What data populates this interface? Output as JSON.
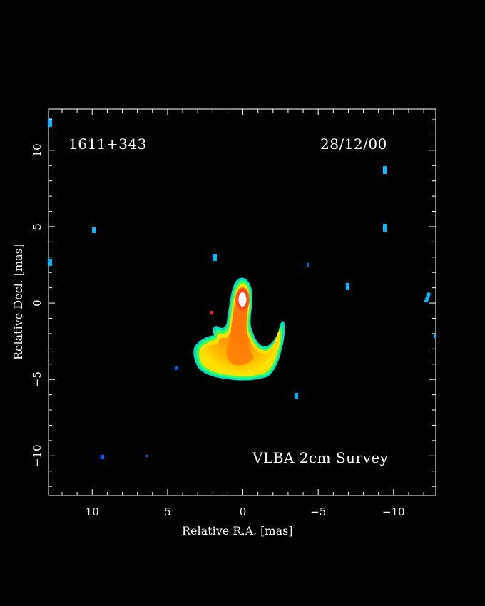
{
  "image": {
    "source_name": "1611+343",
    "observation_date": "28/12/00",
    "survey_name": "VLBA 2cm Survey"
  },
  "axes": {
    "xlabel": "Relative R.A. [mas]",
    "ylabel": "Relative Decl. [mas]",
    "x_range": [
      12.9,
      -12.8
    ],
    "y_range": [
      -12.6,
      12.7
    ],
    "x_ticks": [
      {
        "value": 10,
        "label": "10"
      },
      {
        "value": 5,
        "label": "5"
      },
      {
        "value": 0,
        "label": "0"
      },
      {
        "value": -5,
        "label": "−5"
      },
      {
        "value": -10,
        "label": "−10"
      }
    ],
    "y_ticks": [
      {
        "value": 10,
        "label": "10"
      },
      {
        "value": 5,
        "label": "5"
      },
      {
        "value": 0,
        "label": "0"
      },
      {
        "value": -5,
        "label": "−5"
      },
      {
        "value": -10,
        "label": "−10"
      }
    ]
  },
  "colors": {
    "background": "#000000",
    "frame": "#ffffff",
    "core": "#ffffff",
    "bright": "#ff2a20",
    "mid": "#ff9a00",
    "low": "#ffe000",
    "faint": "#00ff66",
    "noise": "#00a8ff"
  }
}
